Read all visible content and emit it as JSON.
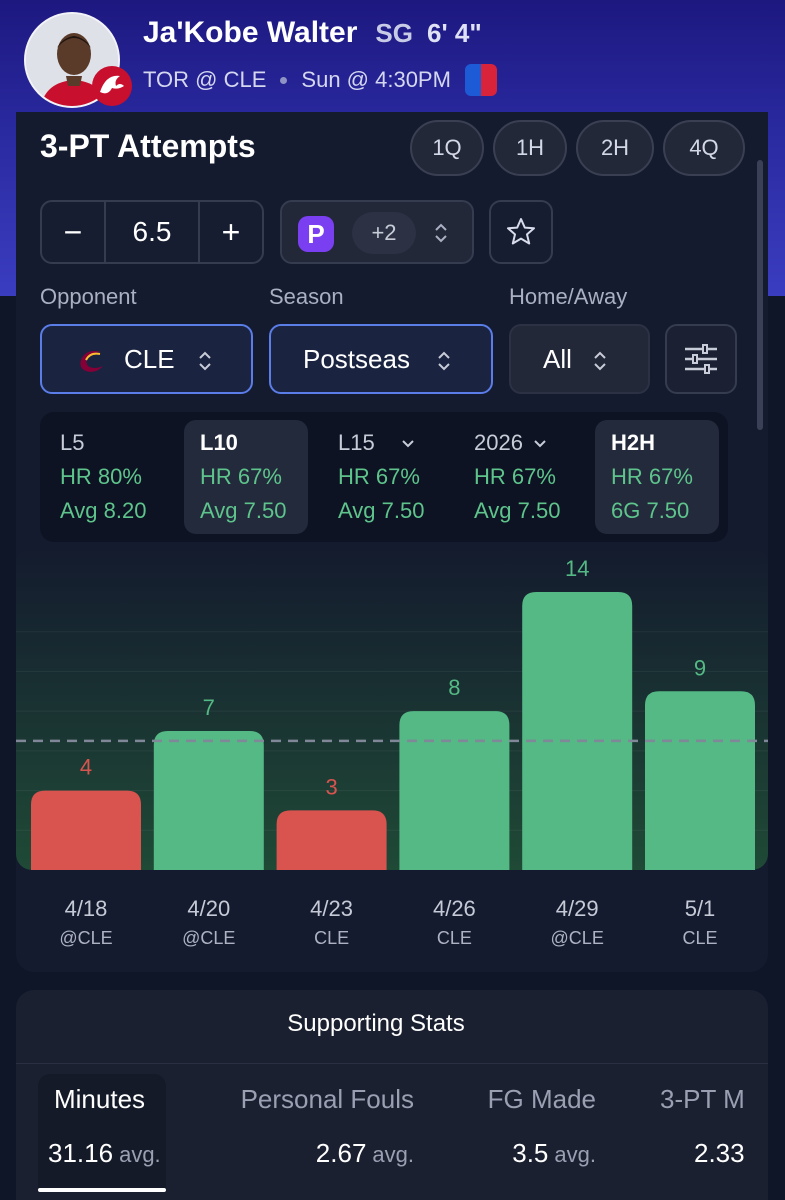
{
  "player": {
    "name": "Ja'Kobe Walter",
    "position": "SG",
    "height": "6' 4\"",
    "matchup": "TOR @ CLE",
    "game_time": "Sun @ 4:30PM"
  },
  "stat": {
    "title": "3-PT Attempts",
    "periods": [
      "1Q",
      "1H",
      "2H",
      "4Q"
    ]
  },
  "line": {
    "minus": "−",
    "value": "6.5",
    "plus": "+"
  },
  "book": {
    "logo_letter": "P",
    "extra": "+2"
  },
  "filters": {
    "opponent": {
      "label": "Opponent",
      "value": "CLE"
    },
    "season": {
      "label": "Season",
      "value": "Postseas"
    },
    "home_away": {
      "label": "Home/Away",
      "value": "All"
    }
  },
  "splits": [
    {
      "label": "L5",
      "hr": "HR 80%",
      "avg": "Avg 8.20",
      "dropdown": false,
      "selected": false
    },
    {
      "label": "L10",
      "hr": "HR 67%",
      "avg": "Avg 7.50",
      "dropdown": false,
      "selected": true
    },
    {
      "label": "L15",
      "hr": "HR 67%",
      "avg": "Avg 7.50",
      "dropdown": true,
      "selected": false
    },
    {
      "label": "2026",
      "hr": "HR 67%",
      "avg": "Avg 7.50",
      "dropdown": true,
      "selected": false
    },
    {
      "label": "H2H",
      "hr": "HR 67%",
      "avg": "6G 7.50",
      "dropdown": false,
      "selected": true
    }
  ],
  "chart_data": {
    "type": "bar",
    "categories": [
      "4/18",
      "4/20",
      "4/23",
      "4/26",
      "4/29",
      "5/1"
    ],
    "opponents": [
      "@CLE",
      "@CLE",
      "CLE",
      "CLE",
      "@CLE",
      "CLE"
    ],
    "values": [
      4,
      7,
      3,
      8,
      14,
      9
    ],
    "threshold": 6.5,
    "ylim": [
      0,
      14
    ],
    "colors": {
      "over": "#54b984",
      "under": "#d9534f",
      "line": "#7f8798"
    },
    "grid": true
  },
  "supporting": {
    "title": "Supporting Stats",
    "stats": [
      {
        "label": "Minutes",
        "value": "31.16",
        "unit": "avg."
      },
      {
        "label": "Personal Fouls",
        "value": "2.67",
        "unit": "avg."
      },
      {
        "label": "FG Made",
        "value": "3.5",
        "unit": "avg."
      },
      {
        "label": "3-PT M",
        "value": "2.33",
        "unit": ""
      }
    ]
  }
}
